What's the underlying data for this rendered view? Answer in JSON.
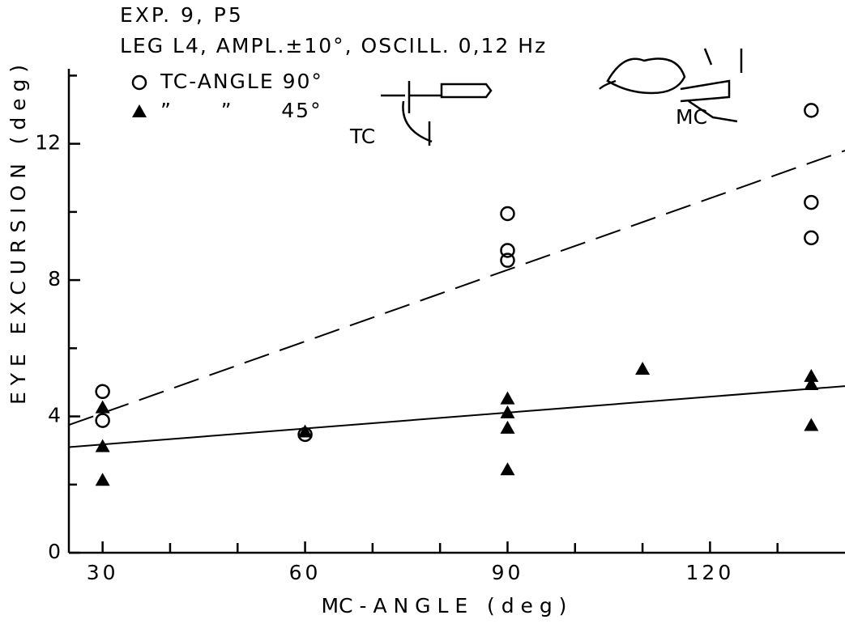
{
  "chart_data": {
    "type": "scatter",
    "title": "EXP. 9, P5",
    "subtitle": "LEG L4, AMPL.±10°, OSCILL. 0,12 Hz",
    "x_label": "MC - A N G L E   ( d e g )",
    "y_label": "E Y E   E X C U R S I O N   ( d e g )",
    "annotations": [
      "TC",
      "MC"
    ],
    "xlim": [
      25,
      140
    ],
    "ylim": [
      0,
      14.2
    ],
    "xticks": [
      30,
      60,
      90,
      120
    ],
    "yticks": [
      0,
      4,
      8,
      12
    ],
    "xminorticks": [
      40,
      50,
      70,
      80,
      100,
      110,
      130
    ],
    "yminorticks": [
      2,
      6,
      10,
      14
    ],
    "series": [
      {
        "name": "TC-ANGLE 90°",
        "marker": "circle-open",
        "color": "#000000",
        "x": [
          30,
          30,
          60,
          90,
          90,
          90,
          135,
          135,
          135
        ],
        "values": [
          4.73,
          3.88,
          3.47,
          9.95,
          8.87,
          8.58,
          12.98,
          10.28,
          9.24
        ],
        "fit": {
          "dashed": true,
          "x": [
            25,
            140
          ],
          "y": [
            3.75,
            11.8
          ]
        }
      },
      {
        "name": "”      ”      45°",
        "marker": "triangle",
        "color": "#000000",
        "x": [
          30,
          30,
          30,
          60,
          90,
          90,
          90,
          90,
          110,
          135,
          135,
          135
        ],
        "values": [
          4.26,
          3.12,
          2.13,
          3.55,
          4.52,
          4.11,
          3.66,
          2.44,
          5.39,
          5.18,
          4.94,
          3.74
        ],
        "fit": {
          "dashed": false,
          "x": [
            25,
            140
          ],
          "y": [
            3.1,
            4.89
          ]
        }
      }
    ]
  }
}
